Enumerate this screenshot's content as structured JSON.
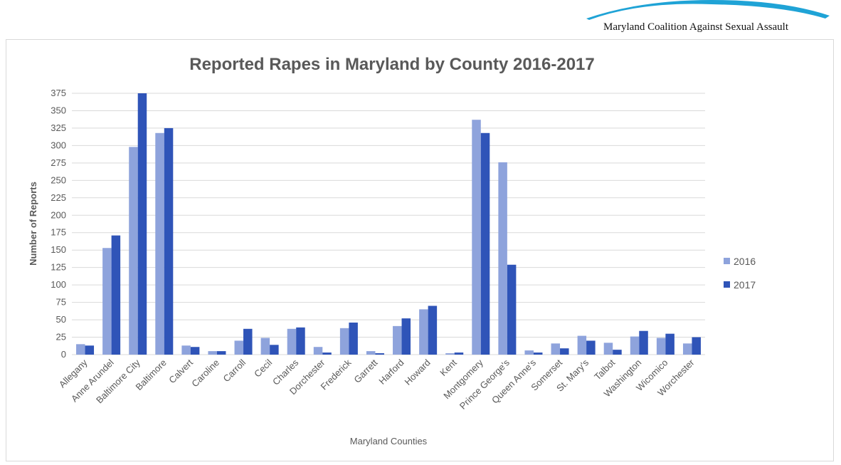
{
  "header": {
    "org_name": "Maryland Coalition Against Sexual Assault"
  },
  "colors": {
    "series_2016": "#8ea3dc",
    "series_2017": "#2f54b8",
    "gridline": "#d9d9d9",
    "title": "#595959",
    "logo": "#1fa3d6"
  },
  "chart_data": {
    "type": "bar",
    "title": "Reported Rapes in Maryland by County 2016-2017",
    "xlabel": "Maryland Counties",
    "ylabel": "Number of Reports",
    "ylim": [
      0,
      375
    ],
    "ytick_step": 25,
    "grid": true,
    "legend_position": "right",
    "categories": [
      "Allegany",
      "Anne Arundel",
      "Baltimore City",
      "Baltimore",
      "Calvert",
      "Caroline",
      "Carroll",
      "Cecil",
      "Charles",
      "Dorchester",
      "Frederick",
      "Garrett",
      "Harford",
      "Howard",
      "Kent",
      "Montgomery",
      "Prince George's",
      "Queen Anne's",
      "Somerset",
      "St. Mary's",
      "Talbot",
      "Washington",
      "Wicomico",
      "Worchester"
    ],
    "series": [
      {
        "name": "2016",
        "values": [
          15,
          153,
          298,
          318,
          13,
          5,
          20,
          24,
          37,
          11,
          38,
          5,
          41,
          65,
          2,
          337,
          276,
          6,
          16,
          27,
          17,
          26,
          24,
          16
        ]
      },
      {
        "name": "2017",
        "values": [
          13,
          171,
          375,
          325,
          11,
          5,
          37,
          14,
          39,
          3,
          46,
          2,
          52,
          70,
          3,
          318,
          129,
          3,
          9,
          20,
          7,
          34,
          30,
          25
        ]
      }
    ]
  }
}
